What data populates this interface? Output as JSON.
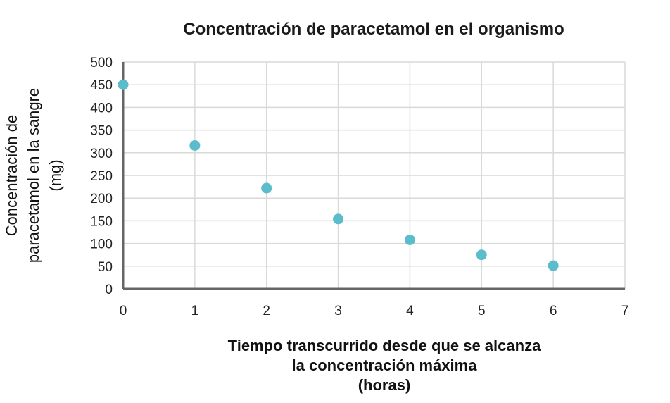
{
  "chart_data": {
    "type": "scatter",
    "title": "Concentración de paracetamol en el organismo",
    "ylabel_lines": [
      "Concentración de",
      "paracetamol en la sangre",
      "(mg)"
    ],
    "xlabel_lines": [
      "Tiempo transcurrido desde que se alcanza",
      "la concentración máxima",
      "(horas)"
    ],
    "xlim": [
      0,
      7
    ],
    "ylim": [
      0,
      500
    ],
    "x_ticks": [
      0,
      1,
      2,
      3,
      4,
      5,
      6,
      7
    ],
    "y_ticks": [
      0,
      50,
      100,
      150,
      200,
      250,
      300,
      350,
      400,
      450,
      500
    ],
    "grid": true,
    "point_color": "#5bbdcb",
    "series": [
      {
        "x": [
          0,
          1,
          2,
          3,
          4,
          5,
          6
        ],
        "y": [
          450,
          316,
          222,
          154,
          108,
          75,
          51
        ]
      }
    ]
  }
}
